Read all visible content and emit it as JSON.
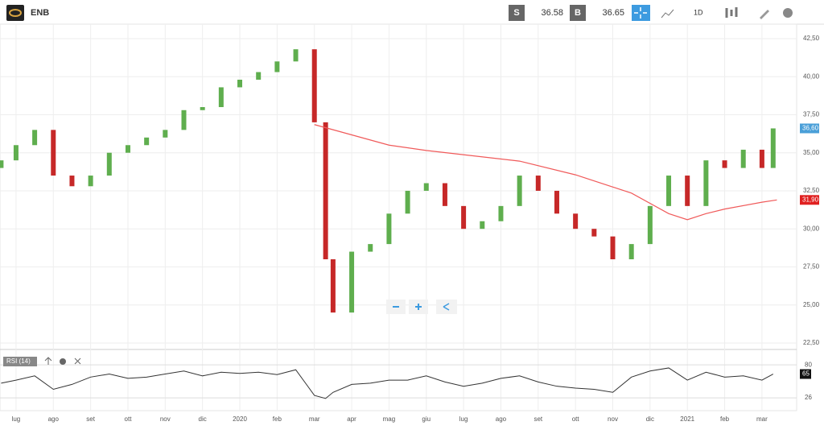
{
  "toolbar": {
    "symbol": "ENB",
    "sell_label": "S",
    "sell_price": "36.58",
    "buy_label": "B",
    "buy_price": "36.65",
    "interval": "1D"
  },
  "chart_data": {
    "type": "candlestick",
    "up_color": "#5fae4e",
    "down_color": "#c62828",
    "x": [
      -0.4,
      0,
      0.5,
      1,
      1.5,
      2,
      2.5,
      3,
      3.5,
      4,
      4.5,
      5,
      5.5,
      6,
      6.5,
      7,
      7.5,
      8,
      8.3,
      8.5,
      9,
      9.5,
      10,
      10.5,
      11,
      11.5,
      12,
      12.5,
      13,
      13.5,
      14,
      14.5,
      15,
      15.5,
      16,
      16.5,
      17,
      17.5,
      18,
      18.5,
      19,
      19.5,
      20,
      20.3
    ],
    "open": [
      34.0,
      34.5,
      35.5,
      36.5,
      33.5,
      32.8,
      33.5,
      35.0,
      35.5,
      36.0,
      36.5,
      37.8,
      38.0,
      39.3,
      39.8,
      40.3,
      41.0,
      41.8,
      37.0,
      28.0,
      24.5,
      28.5,
      29.0,
      31.0,
      32.5,
      33.0,
      31.5,
      30.0,
      30.5,
      31.5,
      33.5,
      32.5,
      31.0,
      30.0,
      29.5,
      28.0,
      29.0,
      31.5,
      33.5,
      31.5,
      34.5,
      34.0,
      35.2,
      34.0
    ],
    "close": [
      34.5,
      35.5,
      36.5,
      33.5,
      32.8,
      33.5,
      35.0,
      35.5,
      36.0,
      36.5,
      37.8,
      38.0,
      39.3,
      39.8,
      40.3,
      41.0,
      41.8,
      37.0,
      28.0,
      24.5,
      28.5,
      29.0,
      31.0,
      32.5,
      33.0,
      31.5,
      30.0,
      30.5,
      31.5,
      33.5,
      32.5,
      31.0,
      30.0,
      29.5,
      28.0,
      29.0,
      31.5,
      33.5,
      31.5,
      34.5,
      34.0,
      35.2,
      34.0,
      36.6
    ],
    "xlim": [
      -0.43,
      20.93
    ],
    "xticks": [
      {
        "value": 0,
        "label": "lug"
      },
      {
        "value": 1,
        "label": "ago"
      },
      {
        "value": 2,
        "label": "set"
      },
      {
        "value": 3,
        "label": "ott"
      },
      {
        "value": 4,
        "label": "nov"
      },
      {
        "value": 5,
        "label": "dic"
      },
      {
        "value": 6,
        "label": "2020"
      },
      {
        "value": 7,
        "label": "feb"
      },
      {
        "value": 8,
        "label": "mar"
      },
      {
        "value": 9,
        "label": "apr"
      },
      {
        "value": 10,
        "label": "mag"
      },
      {
        "value": 11,
        "label": "giu"
      },
      {
        "value": 12,
        "label": "lug"
      },
      {
        "value": 13,
        "label": "ago"
      },
      {
        "value": 14,
        "label": "set"
      },
      {
        "value": 15,
        "label": "ott"
      },
      {
        "value": 16,
        "label": "nov"
      },
      {
        "value": 17,
        "label": "dic"
      },
      {
        "value": 18,
        "label": "2021"
      },
      {
        "value": 19,
        "label": "feb"
      },
      {
        "value": 20,
        "label": "mar"
      }
    ],
    "ylim": [
      22.18,
      43.45
    ],
    "yticks": [
      {
        "value": 42.5,
        "label": "42,50"
      },
      {
        "value": 40,
        "label": "40,00"
      },
      {
        "value": 37.5,
        "label": "37,50"
      },
      {
        "value": 35,
        "label": "35,00"
      },
      {
        "value": 32.5,
        "label": "32,50"
      },
      {
        "value": 30,
        "label": "30,00"
      },
      {
        "value": 27.5,
        "label": "27,50"
      },
      {
        "value": 25,
        "label": "25,00"
      },
      {
        "value": 22.5,
        "label": "22,50"
      }
    ],
    "last_price": {
      "value": 36.6,
      "label": "36,60",
      "color": "#4a9fd8"
    },
    "moving_average": {
      "color": "#f05a5a",
      "x": [
        8,
        10,
        11,
        13.5,
        15,
        16.5,
        17.5,
        18,
        18.5,
        19,
        20,
        20.4
      ],
      "values": [
        36.85,
        35.5,
        35.15,
        34.45,
        33.55,
        32.35,
        31.0,
        30.6,
        31.0,
        31.3,
        31.75,
        31.9
      ],
      "last": {
        "value": 31.9,
        "label": "31,90",
        "color": "#e02020"
      }
    },
    "rsi": {
      "label": "RSI (14)",
      "color": "#333333",
      "values": [
        50,
        55,
        62,
        40,
        48,
        60,
        65,
        58,
        60,
        65,
        70,
        62,
        68,
        66,
        68,
        64,
        72,
        30,
        25,
        35,
        48,
        50,
        55,
        55,
        62,
        52,
        45,
        50,
        58,
        62,
        52,
        45,
        42,
        40,
        35,
        60,
        70,
        75,
        55,
        68,
        60,
        62,
        55,
        65
      ],
      "ylim": [
        5,
        100
      ],
      "yticks": [
        80,
        26
      ],
      "last": 65
    }
  }
}
